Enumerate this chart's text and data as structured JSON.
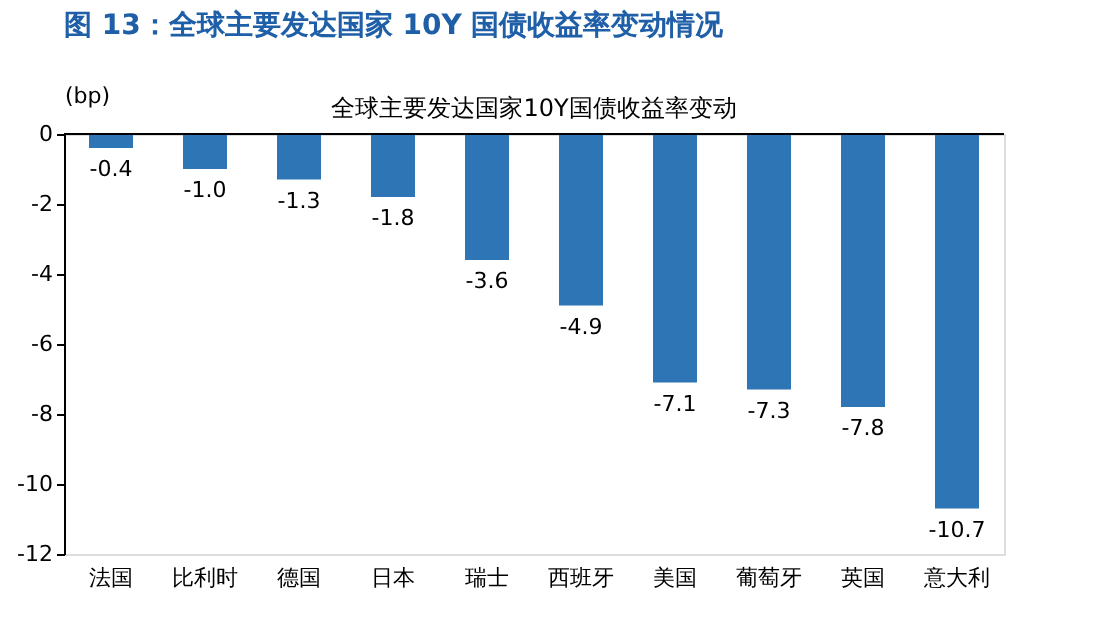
{
  "chart_data": {
    "type": "bar",
    "title": "图 13：全球主要发达国家 10Y 国债收益率变动情况",
    "subtitle": "全球主要发达国家10Y国债收益率变动",
    "ylabel": "(bp)",
    "categories": [
      "法国",
      "比利时",
      "德国",
      "日本",
      "瑞士",
      "西班牙",
      "美国",
      "葡萄牙",
      "英国",
      "意大利"
    ],
    "values": [
      -0.4,
      -1.0,
      -1.3,
      -1.8,
      -3.6,
      -4.9,
      -7.1,
      -7.3,
      -7.8,
      -10.7
    ],
    "value_labels": [
      "-0.4",
      "-1.0",
      "-1.3",
      "-1.8",
      "-3.6",
      "-4.9",
      "-7.1",
      "-7.3",
      "-7.8",
      "-10.7"
    ],
    "color": "#2e75b6",
    "ylim": [
      -12,
      0
    ],
    "yticks": [
      -12,
      -10,
      -8,
      -6,
      -4,
      -2,
      0
    ],
    "grid": false
  }
}
